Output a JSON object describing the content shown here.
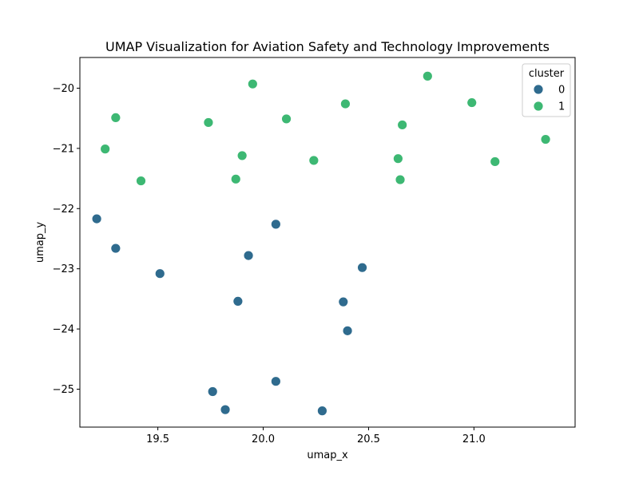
{
  "chart_data": {
    "type": "scatter",
    "title": "UMAP Visualization for Aviation Safety and Technology Improvements",
    "xlabel": "umap_x",
    "ylabel": "umap_y",
    "xlim": [
      19.13,
      21.48
    ],
    "ylim": [
      -25.63,
      -19.49
    ],
    "xticks": [
      19.5,
      20.0,
      20.5,
      21.0
    ],
    "xtick_labels": [
      "19.5",
      "20.0",
      "20.5",
      "21.0"
    ],
    "yticks": [
      -25,
      -24,
      -23,
      -22,
      -21,
      -20
    ],
    "ytick_labels": [
      "−25",
      "−24",
      "−23",
      "−22",
      "−21",
      "−20"
    ],
    "grid": false,
    "legend": {
      "title": "cluster",
      "placement": "top-right"
    },
    "series": [
      {
        "name": "0",
        "color": "#2f6b8e",
        "points": [
          {
            "x": 19.21,
            "y": -22.17
          },
          {
            "x": 19.3,
            "y": -22.66
          },
          {
            "x": 19.51,
            "y": -23.08
          },
          {
            "x": 19.93,
            "y": -22.78
          },
          {
            "x": 20.06,
            "y": -22.26
          },
          {
            "x": 19.88,
            "y": -23.54
          },
          {
            "x": 20.47,
            "y": -22.98
          },
          {
            "x": 20.38,
            "y": -23.55
          },
          {
            "x": 20.4,
            "y": -24.03
          },
          {
            "x": 20.06,
            "y": -24.87
          },
          {
            "x": 19.76,
            "y": -25.04
          },
          {
            "x": 19.82,
            "y": -25.34
          },
          {
            "x": 20.28,
            "y": -25.36
          }
        ]
      },
      {
        "name": "1",
        "color": "#3db873",
        "points": [
          {
            "x": 19.3,
            "y": -20.49
          },
          {
            "x": 19.25,
            "y": -21.01
          },
          {
            "x": 19.42,
            "y": -21.54
          },
          {
            "x": 19.74,
            "y": -20.57
          },
          {
            "x": 19.95,
            "y": -19.93
          },
          {
            "x": 19.9,
            "y": -21.12
          },
          {
            "x": 19.87,
            "y": -21.51
          },
          {
            "x": 20.11,
            "y": -20.51
          },
          {
            "x": 20.24,
            "y": -21.2
          },
          {
            "x": 20.39,
            "y": -20.26
          },
          {
            "x": 20.66,
            "y": -20.61
          },
          {
            "x": 20.64,
            "y": -21.17
          },
          {
            "x": 20.65,
            "y": -21.52
          },
          {
            "x": 20.78,
            "y": -19.8
          },
          {
            "x": 20.99,
            "y": -20.24
          },
          {
            "x": 21.1,
            "y": -21.22
          },
          {
            "x": 21.34,
            "y": -20.85
          }
        ]
      }
    ]
  }
}
